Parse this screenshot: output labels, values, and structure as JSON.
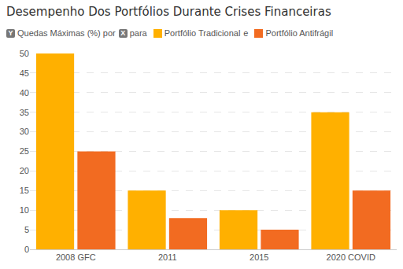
{
  "chart_data": {
    "type": "bar",
    "title": "Desempenho Dos Portfólios Durante Crises Financeiras",
    "annotations": {
      "y_icon": "Y",
      "y_text": "Quedas Máximas (%) por",
      "x_icon": "X",
      "x_text": "para",
      "joiner": "e"
    },
    "categories": [
      "2008 GFC",
      "2011",
      "2015",
      "2020 COVID"
    ],
    "series": [
      {
        "name": "Portfólio Tradicional",
        "color": "#ffb000",
        "values": [
          50,
          15,
          10,
          35
        ]
      },
      {
        "name": "Portfólio Antifrágil",
        "color": "#f26b21",
        "values": [
          25,
          8,
          5,
          15
        ]
      }
    ],
    "ylim": [
      0,
      50
    ],
    "yticks": [
      0,
      5,
      10,
      15,
      20,
      25,
      30,
      35,
      40,
      45,
      50
    ],
    "grid": true
  }
}
